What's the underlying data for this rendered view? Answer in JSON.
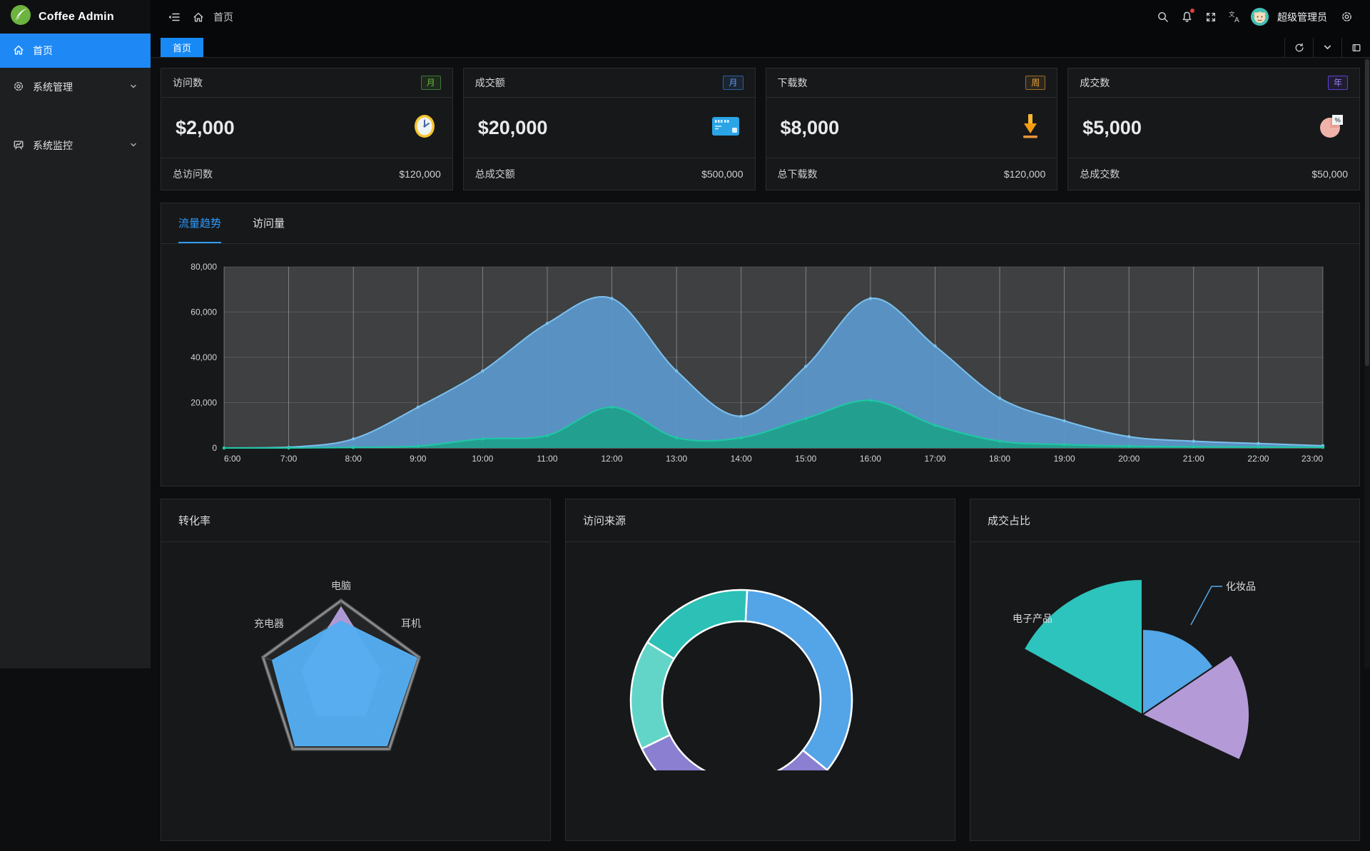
{
  "app": {
    "title": "Coffee Admin"
  },
  "navbar": {
    "breadcrumb_home": "首页",
    "username": "超级管理员"
  },
  "tabbar": {
    "active_tab": "首页"
  },
  "sidebar": {
    "items": [
      {
        "label": "首页",
        "active": true
      },
      {
        "label": "系统管理",
        "expandable": true
      },
      {
        "label": "系统监控",
        "expandable": true
      }
    ]
  },
  "stat_cards": [
    {
      "title": "访问数",
      "badge": "月",
      "badge_color": "#67c23a",
      "icon": "clock-icon",
      "value": "$2,000",
      "footer_label": "总访问数",
      "footer_value": "$120,000"
    },
    {
      "title": "成交额",
      "badge": "月",
      "badge_color": "#5a9cf8",
      "icon": "credit-card-icon",
      "value": "$20,000",
      "footer_label": "总成交额",
      "footer_value": "$500,000"
    },
    {
      "title": "下载数",
      "badge": "周",
      "badge_color": "#e6a23c",
      "icon": "download-icon",
      "value": "$8,000",
      "footer_label": "总下载数",
      "footer_value": "$120,000"
    },
    {
      "title": "成交数",
      "badge": "年",
      "badge_color": "#9a7bf0",
      "icon": "pie-percent-icon",
      "value": "$5,000",
      "footer_label": "总成交数",
      "footer_value": "$50,000"
    }
  ],
  "trend": {
    "tabs": [
      {
        "label": "流量趋势",
        "active": true
      },
      {
        "label": "访问量",
        "active": false
      }
    ]
  },
  "bottom_cards": [
    {
      "title": "转化率"
    },
    {
      "title": "访问来源"
    },
    {
      "title": "成交占比"
    }
  ],
  "colors": {
    "accent_blue": "#1e88f5",
    "trend_active": "#2d9cff",
    "logo_green": "#6db33f"
  },
  "chart_data": [
    {
      "type": "area",
      "title": "流量趋势",
      "x": [
        "6:00",
        "7:00",
        "8:00",
        "9:00",
        "10:00",
        "11:00",
        "12:00",
        "13:00",
        "14:00",
        "15:00",
        "16:00",
        "17:00",
        "18:00",
        "19:00",
        "20:00",
        "21:00",
        "22:00",
        "23:00"
      ],
      "ylim": [
        0,
        80000
      ],
      "yticks": [
        0,
        20000,
        40000,
        60000,
        80000
      ],
      "grid": true,
      "legend_position": "none",
      "series": [
        {
          "name": "traffic-blue",
          "color": "#7cc0ee",
          "fill": "#5b97c9",
          "values": [
            0,
            300,
            4000,
            18000,
            34000,
            55000,
            66000,
            34000,
            14000,
            36000,
            66000,
            45000,
            22000,
            12000,
            5000,
            3000,
            2000,
            1000
          ]
        },
        {
          "name": "traffic-teal",
          "color": "#1ec8a5",
          "fill": "#21a08c",
          "values": [
            0,
            0,
            200,
            800,
            4000,
            5500,
            18000,
            4500,
            4500,
            13000,
            21000,
            10000,
            3000,
            1500,
            800,
            500,
            400,
            300
          ]
        }
      ]
    },
    {
      "type": "radar",
      "title": "转化率",
      "categories": [
        "电脑",
        "耳机",
        "",
        "",
        "充电器"
      ],
      "max": 100,
      "series": [
        {
          "name": "inner-purple",
          "color": "#b39ddb",
          "values": [
            92,
            50,
            50,
            50,
            50
          ]
        },
        {
          "name": "outer-blue",
          "color": "#54aef0",
          "values": [
            75,
            97,
            95,
            95,
            88
          ]
        }
      ]
    },
    {
      "type": "donut",
      "title": "访问来源",
      "start_angle": -87,
      "segments": [
        {
          "color": "#54a4e8",
          "value": 35
        },
        {
          "color": "#8a7fd1",
          "value": 32
        },
        {
          "color": "#63d5c8",
          "value": 16
        },
        {
          "color": "#2cc0b6",
          "value": 17
        }
      ]
    },
    {
      "type": "pie",
      "title": "成交占比",
      "slices": [
        {
          "name": "电子产品",
          "color": "#2cc4bd",
          "start": 209,
          "end": 270,
          "radius": 190
        },
        {
          "name": "化妆品",
          "color": "#54a7e8",
          "start": 270,
          "end": 326,
          "radius": 120
        },
        {
          "name": "",
          "color": "#b49bd8",
          "start": 326,
          "end": 385,
          "radius": 150
        }
      ]
    }
  ]
}
